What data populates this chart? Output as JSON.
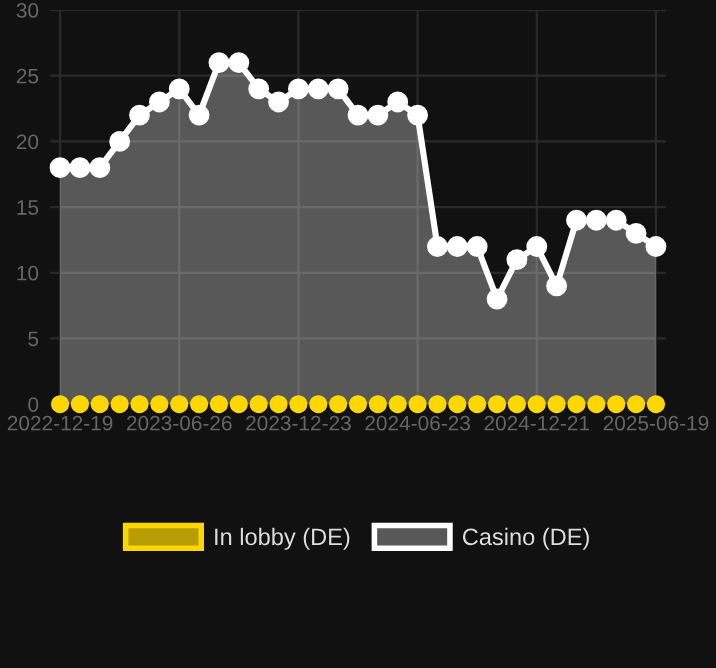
{
  "chart_data": {
    "type": "area",
    "categories": [
      "2022-12-19",
      null,
      null,
      null,
      null,
      null,
      "2023-06-26",
      null,
      null,
      null,
      null,
      null,
      "2023-12-23",
      null,
      null,
      null,
      null,
      null,
      "2024-06-23",
      null,
      null,
      null,
      null,
      null,
      "2024-12-21",
      null,
      null,
      null,
      null,
      null,
      "2025-06-19"
    ],
    "series": [
      {
        "name": "In lobby (DE)",
        "type": "scatter",
        "color": "#ffd700",
        "values": [
          0,
          0,
          0,
          0,
          0,
          0,
          0,
          0,
          0,
          0,
          0,
          0,
          0,
          0,
          0,
          0,
          0,
          0,
          0,
          0,
          0,
          0,
          0,
          0,
          0,
          0,
          0,
          0,
          0,
          0,
          0
        ]
      },
      {
        "name": "Casino (DE)",
        "color": "#ffffff",
        "values": [
          18,
          18,
          18,
          20,
          22,
          23,
          24,
          22,
          26,
          26,
          24,
          23,
          24,
          24,
          24,
          22,
          22,
          23,
          22,
          12,
          12,
          12,
          8,
          11,
          12,
          9,
          14,
          14,
          14,
          13,
          12
        ]
      }
    ],
    "ylim": [
      0,
      30
    ],
    "yticks": [
      0,
      5,
      10,
      15,
      20,
      25,
      30
    ],
    "grid": true,
    "legend": "bottom",
    "marker": "circle",
    "line_style": "solid"
  }
}
